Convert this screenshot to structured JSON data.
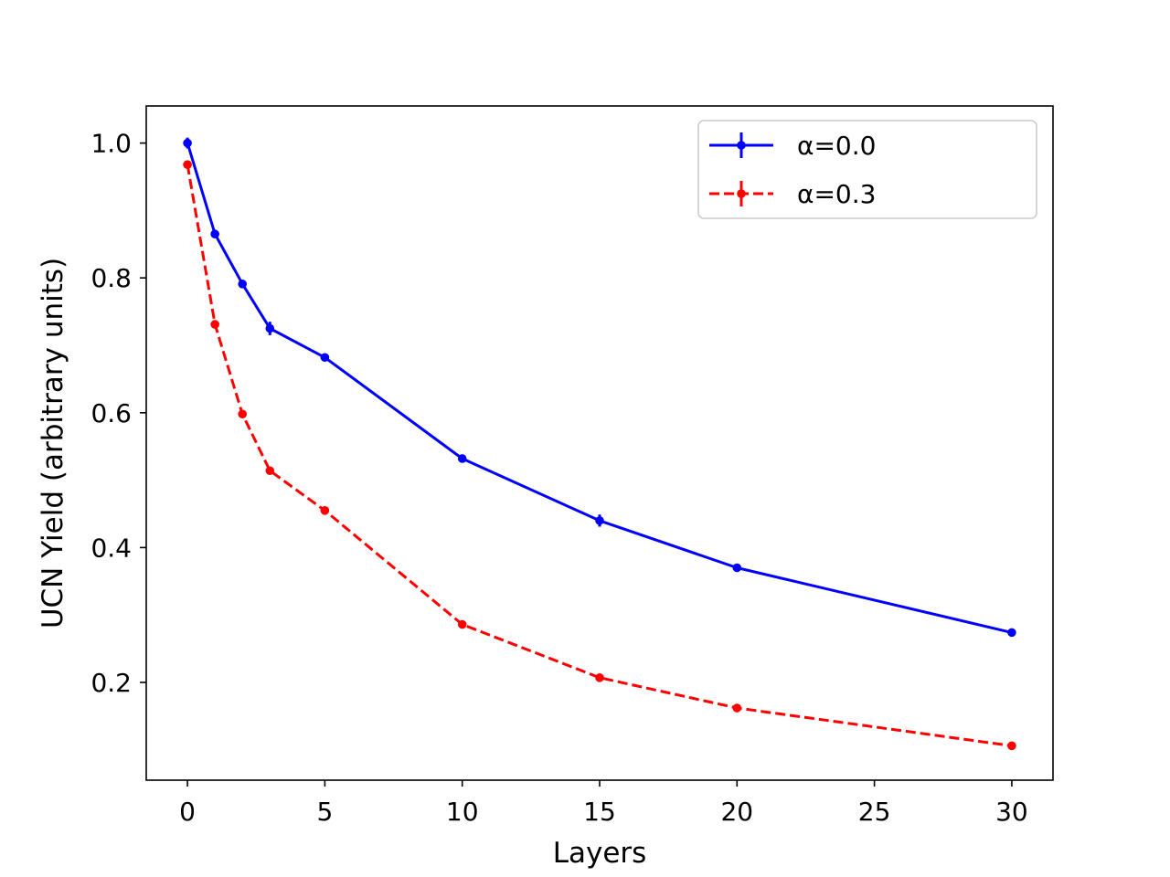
{
  "chart_data": {
    "type": "line",
    "title": "",
    "xlabel": "Layers",
    "ylabel": "UCN Yield (arbitrary units)",
    "xlim": [
      -1.5,
      31.5
    ],
    "ylim": [
      0.055,
      1.055
    ],
    "xticks": [
      0,
      5,
      10,
      15,
      20,
      25,
      30
    ],
    "xtick_labels": [
      "0",
      "5",
      "10",
      "15",
      "20",
      "25",
      "30"
    ],
    "yticks": [
      0.2,
      0.4,
      0.6,
      0.8,
      1.0
    ],
    "ytick_labels": [
      "0.2",
      "0.4",
      "0.6",
      "0.8",
      "1.0"
    ],
    "grid": false,
    "legend_position": "top-right",
    "series": [
      {
        "name": "α=0.0",
        "color": "#0000ff",
        "linestyle": "solid",
        "x": [
          0,
          1,
          2,
          3,
          5,
          10,
          15,
          20,
          30
        ],
        "y": [
          1.0,
          0.865,
          0.791,
          0.725,
          0.682,
          0.532,
          0.44,
          0.37,
          0.274
        ],
        "yerr": [
          0.008,
          0.005,
          0.005,
          0.01,
          0.005,
          0.005,
          0.009,
          0.006,
          0.006
        ]
      },
      {
        "name": "α=0.3",
        "color": "#ff0000",
        "linestyle": "dashed",
        "x": [
          0,
          1,
          2,
          3,
          5,
          10,
          15,
          20,
          30
        ],
        "y": [
          0.968,
          0.731,
          0.598,
          0.514,
          0.455,
          0.286,
          0.207,
          0.162,
          0.106
        ],
        "yerr": [
          0.004,
          0.004,
          0.004,
          0.004,
          0.004,
          0.004,
          0.004,
          0.003,
          0.003
        ]
      }
    ]
  }
}
